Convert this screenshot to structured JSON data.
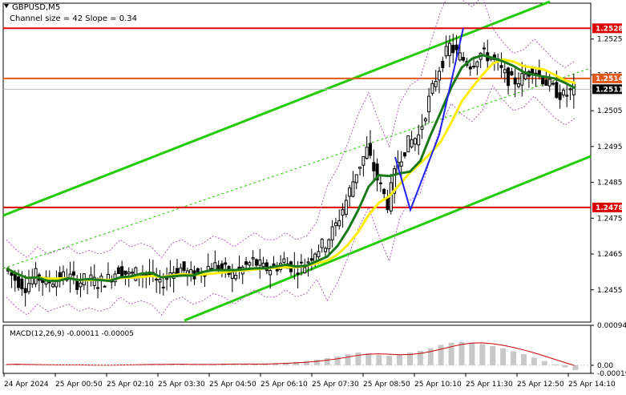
{
  "header": {
    "symbol": "GBPUSD,M5",
    "channel_info": "Channel size = 42 Slope = 0.34"
  },
  "macd": {
    "label": "MACD(12,26,9) -0.00011 -0.00005",
    "axis_labels": [
      "0.00094",
      "0.00",
      "-0.00019"
    ]
  },
  "colors": {
    "candle": "#000000",
    "channel": "#22cc00",
    "ma_green": "#1a7a1a",
    "ma_yellow": "#ffee00",
    "level_red": "#dd0000",
    "level_orange": "#e05a1e",
    "envelope": "#b060c0",
    "blue_lines": "#2222ee",
    "macd_hist": "#c8c8c8",
    "macd_signal": "#cc0000",
    "price_tag": "#dd0000"
  },
  "chart_data": {
    "type": "candlestick",
    "symbol": "GBPUSD",
    "timeframe": "M5",
    "ylim": [
      1.2446,
      1.2535
    ],
    "y_ticks": [
      1.2525,
      1.2515,
      1.2505,
      1.2495,
      1.2485,
      1.2475,
      1.2465,
      1.2455
    ],
    "x_tick_labels": [
      "24 Apr 2024",
      "25 Apr 00:50",
      "25 Apr 02:10",
      "25 Apr 03:30",
      "25 Apr 04:50",
      "25 Apr 06:10",
      "25 Apr 07:30",
      "25 Apr 08:50",
      "25 Apr 10:10",
      "25 Apr 11:30",
      "25 Apr 12:50",
      "25 Apr 14:10"
    ],
    "price_levels": [
      {
        "value": 1.2528,
        "label": "1.2528",
        "color": "#dd0000"
      },
      {
        "value": 1.2514,
        "label": "1.2514",
        "color": "#e05a1e"
      },
      {
        "value": 1.2511,
        "label": "1.2511",
        "color": "#000000"
      },
      {
        "value": 1.2478,
        "label": "1.2478",
        "color": "#dd0000"
      }
    ],
    "close_path": [
      1.2461,
      1.2458,
      1.2456,
      1.2459,
      1.2457,
      1.2458,
      1.2459,
      1.2457,
      1.2458,
      1.2457,
      1.2458,
      1.2461,
      1.2459,
      1.246,
      1.2459,
      1.2456,
      1.246,
      1.2461,
      1.2459,
      1.246,
      1.2462,
      1.2461,
      1.2459,
      1.2461,
      1.2463,
      1.2461,
      1.2461,
      1.2463,
      1.2461,
      1.2462,
      1.2466,
      1.2468,
      1.2473,
      1.248,
      1.2488,
      1.2494,
      1.2486,
      1.2479,
      1.2491,
      1.2496,
      1.2498,
      1.2508,
      1.2517,
      1.2523,
      1.252,
      1.2518,
      1.2521,
      1.252,
      1.2516,
      1.2513,
      1.2514,
      1.2517,
      1.2514,
      1.2511,
      1.2509,
      1.2511
    ],
    "macd_path": [
      2e-05,
      3e-05,
      1e-05,
      0.0,
      1e-05,
      2e-05,
      1e-05,
      0.0,
      -1e-05,
      0.0,
      1e-05,
      2e-05,
      1e-05,
      2e-05,
      3e-05,
      2e-05,
      3e-05,
      2e-05,
      1e-05,
      2e-05,
      3e-05,
      4e-05,
      3e-05,
      2e-05,
      3e-05,
      4e-05,
      5e-05,
      6e-05,
      8e-05,
      0.0001,
      0.00013,
      0.00017,
      0.00021,
      0.00026,
      0.0003,
      0.00028,
      0.00024,
      0.00022,
      0.00025,
      0.0003,
      0.00034,
      0.0004,
      0.00048,
      0.00053,
      0.00055,
      0.00053,
      0.0005,
      0.00045,
      0.0004,
      0.00033,
      0.00026,
      0.00018,
      0.0001,
      2e-05,
      -5e-05,
      -0.00011
    ]
  }
}
